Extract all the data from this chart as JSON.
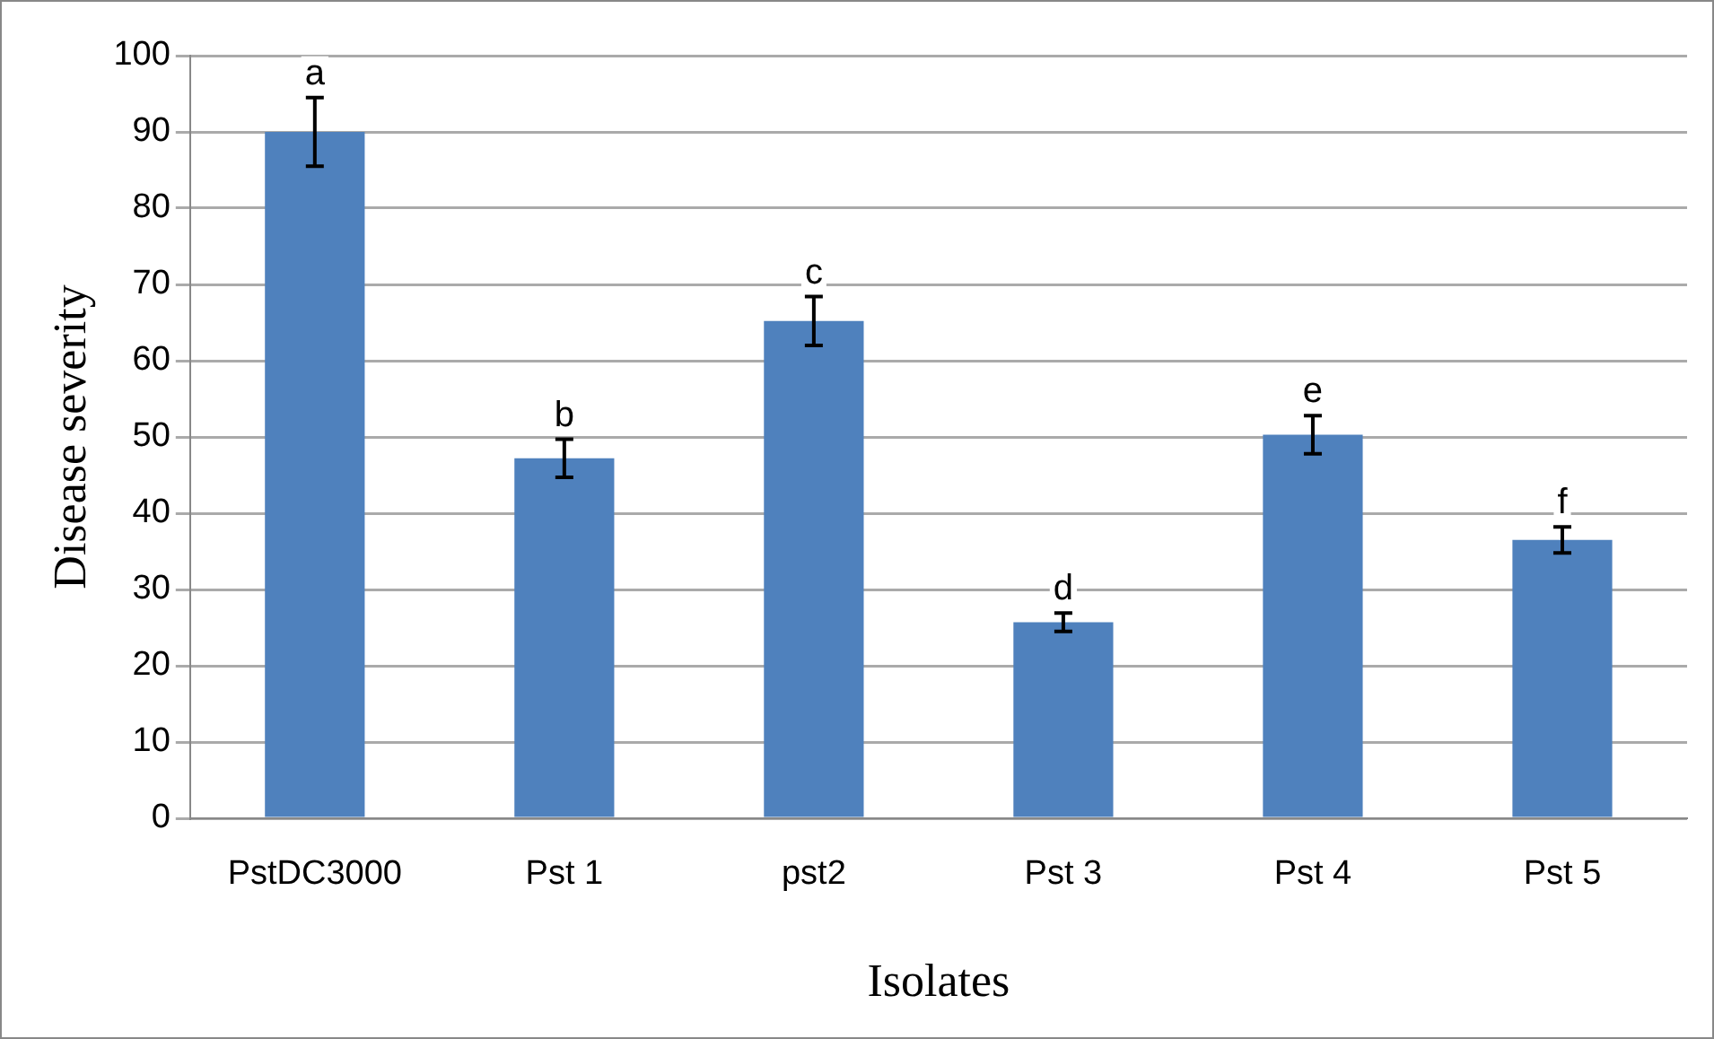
{
  "chart_data": {
    "type": "bar",
    "xlabel": "Isolates",
    "ylabel": "Disease severity",
    "categories": [
      "PstDC3000",
      "Pst 1",
      "pst2",
      "Pst 3",
      "Pst 4",
      "Pst 5"
    ],
    "values": [
      90,
      47.2,
      65.2,
      25.7,
      50.3,
      36.5
    ],
    "errors": [
      4.5,
      2.5,
      3.2,
      1.2,
      2.5,
      1.7
    ],
    "color": "#4f81bd",
    "ylim": [
      0,
      100
    ],
    "yticks": [
      0,
      10,
      20,
      30,
      40,
      50,
      60,
      70,
      80,
      90,
      100
    ],
    "grid": "y",
    "legend": false,
    "annotations": [
      {
        "text": "a",
        "x": "PstDC3000",
        "y": 94.5
      },
      {
        "text": "b",
        "x": "Pst 1",
        "y": 49.7
      },
      {
        "text": "c",
        "x": "pst2",
        "y": 68.4
      },
      {
        "text": "d",
        "x": "Pst 3",
        "y": 26.9
      },
      {
        "text": "e",
        "x": "Pst 4",
        "y": 52.8
      },
      {
        "text": "f",
        "x": "Pst 5",
        "y": 38.2
      }
    ]
  }
}
